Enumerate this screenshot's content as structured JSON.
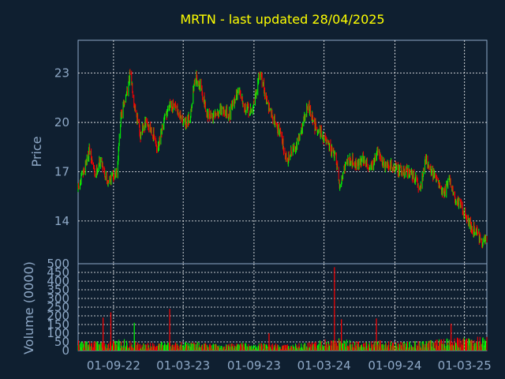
{
  "chart_data": {
    "type": "candlestick",
    "title": "MRTN - last updated 28/04/2025",
    "price_panel": {
      "ylabel": "Price",
      "ylim": [
        11.4,
        25.0
      ],
      "y_ticks": [
        "14",
        "17",
        "20",
        "23"
      ]
    },
    "volume_panel": {
      "ylabel": "Volume (0000)",
      "ylim": [
        0,
        500
      ],
      "y_ticks": [
        "0",
        "50",
        "100",
        "150",
        "200",
        "250",
        "300",
        "350",
        "400",
        "450",
        "500"
      ]
    },
    "x_ticks": [
      "01-09-22",
      "01-03-23",
      "01-09-23",
      "01-03-24",
      "01-09-24",
      "01-03-25"
    ],
    "colors": {
      "up": "#00ff00",
      "down": "#ff0000",
      "title": "#ffff00",
      "grid": "#ffffff",
      "background": "#0f1f30"
    },
    "grid": true,
    "price_path": [
      {
        "x": "2022-06-01",
        "y": 15.9
      },
      {
        "x": "2022-06-15",
        "y": 17.0
      },
      {
        "x": "2022-06-30",
        "y": 18.3
      },
      {
        "x": "2022-07-15",
        "y": 16.8
      },
      {
        "x": "2022-07-30",
        "y": 17.8
      },
      {
        "x": "2022-08-15",
        "y": 16.4
      },
      {
        "x": "2022-09-01",
        "y": 16.8
      },
      {
        "x": "2022-09-10",
        "y": 17.0
      },
      {
        "x": "2022-09-20",
        "y": 20.3
      },
      {
        "x": "2022-10-05",
        "y": 21.8
      },
      {
        "x": "2022-10-15",
        "y": 23.0
      },
      {
        "x": "2022-10-25",
        "y": 21.2
      },
      {
        "x": "2022-11-10",
        "y": 19.2
      },
      {
        "x": "2022-11-25",
        "y": 20.0
      },
      {
        "x": "2022-12-10",
        "y": 19.5
      },
      {
        "x": "2022-12-25",
        "y": 18.3
      },
      {
        "x": "2023-01-10",
        "y": 20.0
      },
      {
        "x": "2023-01-25",
        "y": 21.2
      },
      {
        "x": "2023-02-10",
        "y": 20.8
      },
      {
        "x": "2023-02-25",
        "y": 20.2
      },
      {
        "x": "2023-03-10",
        "y": 19.8
      },
      {
        "x": "2023-03-20",
        "y": 20.5
      },
      {
        "x": "2023-04-01",
        "y": 22.8
      },
      {
        "x": "2023-04-15",
        "y": 22.2
      },
      {
        "x": "2023-05-01",
        "y": 20.6
      },
      {
        "x": "2023-05-20",
        "y": 20.3
      },
      {
        "x": "2023-06-10",
        "y": 20.8
      },
      {
        "x": "2023-06-30",
        "y": 20.5
      },
      {
        "x": "2023-07-15",
        "y": 21.6
      },
      {
        "x": "2023-07-25",
        "y": 22.0
      },
      {
        "x": "2023-08-10",
        "y": 20.8
      },
      {
        "x": "2023-08-25",
        "y": 20.6
      },
      {
        "x": "2023-09-05",
        "y": 21.6
      },
      {
        "x": "2023-09-15",
        "y": 23.0
      },
      {
        "x": "2023-09-25",
        "y": 22.3
      },
      {
        "x": "2023-10-10",
        "y": 20.8
      },
      {
        "x": "2023-10-25",
        "y": 20.1
      },
      {
        "x": "2023-11-10",
        "y": 19.2
      },
      {
        "x": "2023-11-25",
        "y": 17.7
      },
      {
        "x": "2023-12-10",
        "y": 18.3
      },
      {
        "x": "2023-12-25",
        "y": 18.8
      },
      {
        "x": "2024-01-10",
        "y": 20.3
      },
      {
        "x": "2024-01-20",
        "y": 21.0
      },
      {
        "x": "2024-02-05",
        "y": 19.8
      },
      {
        "x": "2024-02-20",
        "y": 19.5
      },
      {
        "x": "2024-03-05",
        "y": 18.8
      },
      {
        "x": "2024-03-20",
        "y": 18.3
      },
      {
        "x": "2024-04-01",
        "y": 17.8
      },
      {
        "x": "2024-04-10",
        "y": 16.0
      },
      {
        "x": "2024-04-25",
        "y": 17.5
      },
      {
        "x": "2024-05-10",
        "y": 17.8
      },
      {
        "x": "2024-05-25",
        "y": 17.4
      },
      {
        "x": "2024-06-10",
        "y": 17.8
      },
      {
        "x": "2024-06-25",
        "y": 17.3
      },
      {
        "x": "2024-07-10",
        "y": 17.6
      },
      {
        "x": "2024-07-20",
        "y": 18.4
      },
      {
        "x": "2024-08-05",
        "y": 17.2
      },
      {
        "x": "2024-08-20",
        "y": 17.4
      },
      {
        "x": "2024-09-05",
        "y": 17.2
      },
      {
        "x": "2024-09-25",
        "y": 17.0
      },
      {
        "x": "2024-10-10",
        "y": 17.0
      },
      {
        "x": "2024-10-25",
        "y": 16.5
      },
      {
        "x": "2024-11-05",
        "y": 15.9
      },
      {
        "x": "2024-11-20",
        "y": 17.8
      },
      {
        "x": "2024-12-05",
        "y": 17.0
      },
      {
        "x": "2024-12-20",
        "y": 16.4
      },
      {
        "x": "2025-01-05",
        "y": 15.6
      },
      {
        "x": "2025-01-20",
        "y": 16.6
      },
      {
        "x": "2025-02-05",
        "y": 15.3
      },
      {
        "x": "2025-02-20",
        "y": 14.9
      },
      {
        "x": "2025-03-05",
        "y": 14.3
      },
      {
        "x": "2025-03-20",
        "y": 13.6
      },
      {
        "x": "2025-04-05",
        "y": 13.2
      },
      {
        "x": "2025-04-15",
        "y": 12.6
      },
      {
        "x": "2025-04-28",
        "y": 13.0
      }
    ],
    "volume_path": [
      {
        "x": "2022-06-01",
        "y": 40
      },
      {
        "x": "2022-08-01",
        "y": 35
      },
      {
        "x": "2022-10-01",
        "y": 45
      },
      {
        "x": "2022-12-01",
        "y": 30
      },
      {
        "x": "2023-02-01",
        "y": 35
      },
      {
        "x": "2023-04-01",
        "y": 35
      },
      {
        "x": "2023-06-01",
        "y": 25
      },
      {
        "x": "2023-08-01",
        "y": 30
      },
      {
        "x": "2023-10-01",
        "y": 30
      },
      {
        "x": "2023-12-01",
        "y": 25
      },
      {
        "x": "2024-02-01",
        "y": 35
      },
      {
        "x": "2024-04-01",
        "y": 50
      },
      {
        "x": "2024-06-01",
        "y": 35
      },
      {
        "x": "2024-08-01",
        "y": 40
      },
      {
        "x": "2024-10-01",
        "y": 35
      },
      {
        "x": "2024-12-01",
        "y": 40
      },
      {
        "x": "2025-02-01",
        "y": 50
      },
      {
        "x": "2025-04-28",
        "y": 55
      }
    ],
    "volume_spikes": [
      {
        "x": "2022-08-05",
        "y": 190
      },
      {
        "x": "2022-08-25",
        "y": 220
      },
      {
        "x": "2022-10-25",
        "y": 160
      },
      {
        "x": "2023-01-25",
        "y": 240
      },
      {
        "x": "2023-10-10",
        "y": 100
      },
      {
        "x": "2024-03-28",
        "y": 480
      },
      {
        "x": "2024-04-15",
        "y": 180
      },
      {
        "x": "2024-07-15",
        "y": 185
      },
      {
        "x": "2025-01-25",
        "y": 155
      }
    ]
  }
}
